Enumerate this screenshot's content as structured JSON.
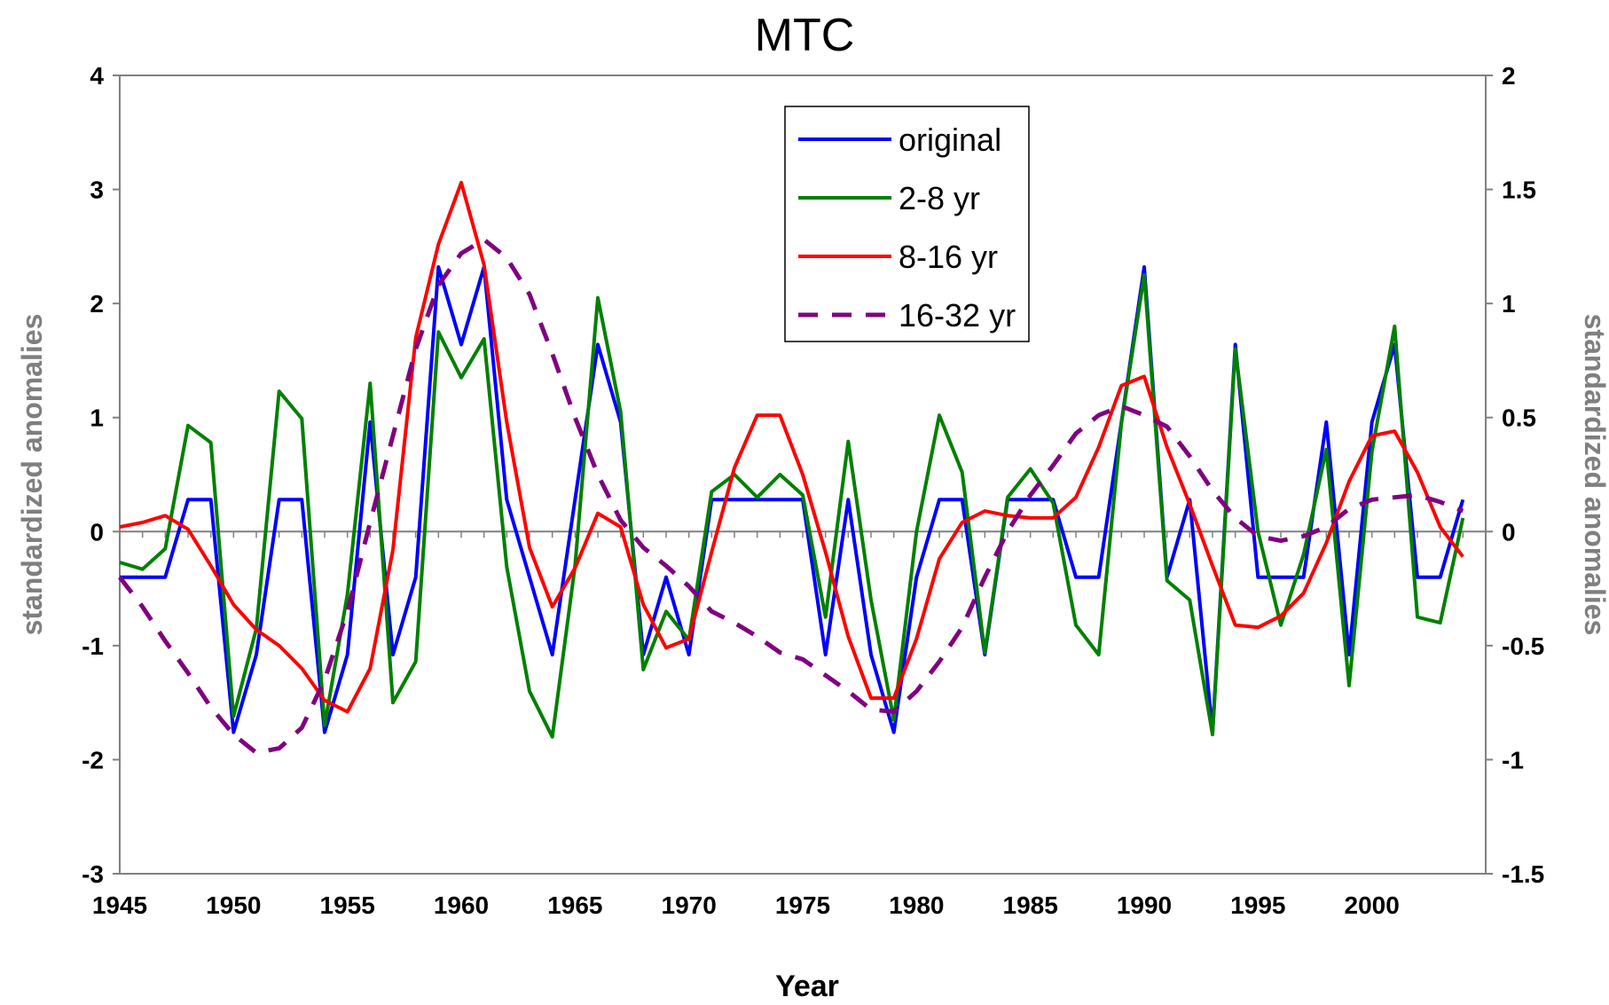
{
  "chart_data": {
    "type": "line",
    "title": "MTC",
    "xlabel": "Year",
    "ylabel_left": "standardized anomalies",
    "ylabel_right": "standardized anomalies",
    "xlim": [
      1945,
      2005
    ],
    "ylim_left": [
      -3,
      4
    ],
    "ylim_right": [
      -1.5,
      2
    ],
    "x_ticks": [
      1945,
      1950,
      1955,
      1960,
      1965,
      1970,
      1975,
      1980,
      1985,
      1990,
      1995,
      2000
    ],
    "y_ticks_left": [
      -3,
      -2,
      -1,
      0,
      1,
      2,
      3,
      4
    ],
    "y_ticks_right": [
      -1.5,
      -1,
      -0.5,
      0,
      0.5,
      1,
      1.5,
      2
    ],
    "y_tick_labels_right": [
      "-1.5",
      "-1",
      "-0.5",
      "0",
      "0.5",
      "1",
      "1.5",
      "2"
    ],
    "grid": false,
    "legend_position": "top-center",
    "x": [
      1945,
      1946,
      1947,
      1948,
      1949,
      1950,
      1951,
      1952,
      1953,
      1954,
      1955,
      1956,
      1957,
      1958,
      1959,
      1960,
      1961,
      1962,
      1963,
      1964,
      1965,
      1966,
      1967,
      1968,
      1969,
      1970,
      1971,
      1972,
      1973,
      1974,
      1975,
      1976,
      1977,
      1978,
      1979,
      1980,
      1981,
      1982,
      1983,
      1984,
      1985,
      1986,
      1987,
      1988,
      1989,
      1990,
      1991,
      1992,
      1993,
      1994,
      1995,
      1996,
      1997,
      1998,
      1999,
      2000,
      2001,
      2002,
      2003,
      2004
    ],
    "series": [
      {
        "name": "original",
        "axis": "left",
        "color": "#0000ff",
        "dash": false,
        "values": [
          -0.4,
          -0.4,
          -0.4,
          0.28,
          0.28,
          -1.76,
          -1.08,
          0.28,
          0.28,
          -1.76,
          -1.08,
          0.96,
          -1.08,
          -0.4,
          2.32,
          1.64,
          2.32,
          0.28,
          -0.4,
          -1.08,
          0.28,
          1.64,
          0.96,
          -1.08,
          -0.4,
          -1.08,
          0.28,
          0.28,
          0.28,
          0.28,
          0.28,
          -1.08,
          0.28,
          -1.08,
          -1.76,
          -0.4,
          0.28,
          0.28,
          -1.08,
          0.28,
          0.28,
          0.28,
          -0.4,
          -0.4,
          0.96,
          2.32,
          -0.4,
          0.28,
          -1.76,
          1.64,
          -0.4,
          -0.4,
          -0.4,
          0.96,
          -1.08,
          0.96,
          1.64,
          -0.4,
          -0.4,
          0.28
        ]
      },
      {
        "name": "2-8 yr",
        "axis": "left",
        "color": "#008000",
        "dash": false,
        "values": [
          -0.27,
          -0.33,
          -0.15,
          0.93,
          0.78,
          -1.62,
          -0.85,
          1.23,
          0.99,
          -1.7,
          -0.55,
          1.3,
          -1.5,
          -1.14,
          1.75,
          1.35,
          1.69,
          -0.31,
          -1.4,
          -1.8,
          -0.3,
          2.05,
          1.05,
          -1.21,
          -0.7,
          -0.95,
          0.35,
          0.5,
          0.3,
          0.5,
          0.32,
          -0.75,
          0.79,
          -0.6,
          -1.65,
          0.0,
          1.02,
          0.52,
          -1.06,
          0.3,
          0.55,
          0.25,
          -0.82,
          -1.08,
          0.95,
          2.25,
          -0.43,
          -0.6,
          -1.78,
          1.6,
          0.0,
          -0.82,
          -0.2,
          0.72,
          -1.35,
          0.7,
          1.8,
          -0.75,
          -0.8,
          0.12
        ]
      },
      {
        "name": "8-16 yr",
        "axis": "right",
        "color": "#ff0000",
        "dash": false,
        "values": [
          0.02,
          0.04,
          0.07,
          0.01,
          -0.15,
          -0.32,
          -0.43,
          -0.5,
          -0.6,
          -0.74,
          -0.79,
          -0.6,
          -0.08,
          0.85,
          1.26,
          1.53,
          1.17,
          0.48,
          -0.07,
          -0.33,
          -0.16,
          0.08,
          0.02,
          -0.32,
          -0.51,
          -0.47,
          -0.09,
          0.28,
          0.51,
          0.51,
          0.25,
          -0.09,
          -0.46,
          -0.73,
          -0.73,
          -0.47,
          -0.12,
          0.04,
          0.09,
          0.07,
          0.06,
          0.06,
          0.15,
          0.37,
          0.64,
          0.68,
          0.37,
          0.12,
          -0.15,
          -0.41,
          -0.42,
          -0.37,
          -0.27,
          -0.05,
          0.22,
          0.42,
          0.44,
          0.26,
          0.02,
          -0.11
        ]
      },
      {
        "name": "16-32 yr",
        "axis": "right",
        "color": "#800080",
        "dash": true,
        "values": [
          -0.2,
          -0.33,
          -0.48,
          -0.62,
          -0.77,
          -0.89,
          -0.97,
          -0.95,
          -0.86,
          -0.65,
          -0.35,
          0.04,
          0.42,
          0.8,
          1.08,
          1.22,
          1.28,
          1.2,
          1.04,
          0.78,
          0.5,
          0.25,
          0.05,
          -0.07,
          -0.15,
          -0.24,
          -0.35,
          -0.4,
          -0.46,
          -0.53,
          -0.56,
          -0.63,
          -0.7,
          -0.78,
          -0.79,
          -0.7,
          -0.57,
          -0.42,
          -0.2,
          0.0,
          0.16,
          0.29,
          0.43,
          0.51,
          0.55,
          0.51,
          0.46,
          0.33,
          0.18,
          0.06,
          -0.02,
          -0.04,
          -0.02,
          0.02,
          0.1,
          0.14,
          0.15,
          0.16,
          0.13,
          0.09
        ]
      }
    ]
  }
}
